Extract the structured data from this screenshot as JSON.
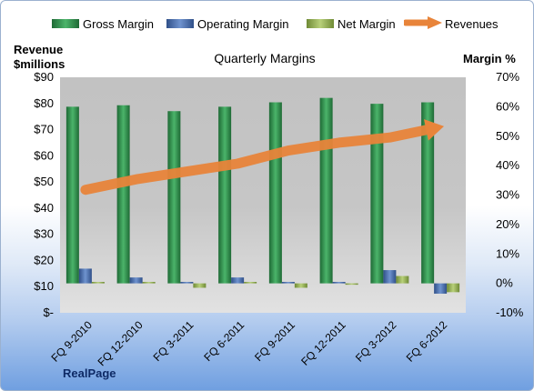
{
  "legend": {
    "gross": "Gross Margin",
    "operating": "Operating Margin",
    "net": "Net Margin",
    "revenues": "Revenues"
  },
  "axis_titles": {
    "left_line1": "Revenue",
    "left_line2": "$millions",
    "right": "Margin %"
  },
  "brand": "RealPage",
  "colors": {
    "gross": "#2e8b4a",
    "operating": "#4f74b8",
    "net": "#9bbb59",
    "revenues": "#e8843a",
    "plot_bg": "#c4c4c4"
  },
  "chart_data": {
    "type": "bar",
    "title": "Quarterly Margins",
    "categories": [
      "FQ 9-2010",
      "FQ 12-2010",
      "FQ 3-2011",
      "FQ 6-2011",
      "FQ 9-2011",
      "FQ 12-2011",
      "FQ 3-2012",
      "FQ 6-2012"
    ],
    "y_left": {
      "label": "Revenue $millions",
      "ticks": [
        "$-",
        "$10",
        "$20",
        "$30",
        "$40",
        "$50",
        "$60",
        "$70",
        "$80",
        "$90"
      ],
      "ylim": [
        0,
        90
      ]
    },
    "y_right": {
      "label": "Margin %",
      "ticks": [
        "-10%",
        "0%",
        "10%",
        "20%",
        "30%",
        "40%",
        "50%",
        "60%",
        "70%"
      ],
      "ylim": [
        -10,
        70
      ]
    },
    "series": [
      {
        "name": "Gross Margin",
        "axis": "right",
        "values": [
          60.0,
          60.5,
          58.5,
          60.0,
          61.5,
          63.0,
          61.0,
          61.5
        ]
      },
      {
        "name": "Operating Margin",
        "axis": "right",
        "values": [
          5.0,
          2.0,
          0.5,
          2.0,
          0.5,
          0.5,
          4.5,
          -3.5
        ]
      },
      {
        "name": "Net Margin",
        "axis": "right",
        "values": [
          0.5,
          0.5,
          -1.5,
          0.5,
          -1.5,
          0.0,
          2.5,
          -3.0
        ]
      },
      {
        "name": "Revenues",
        "axis": "left",
        "type": "line",
        "values": [
          47,
          51,
          54,
          57,
          62,
          65,
          67,
          71
        ]
      }
    ],
    "legend": "top",
    "grid": false
  }
}
